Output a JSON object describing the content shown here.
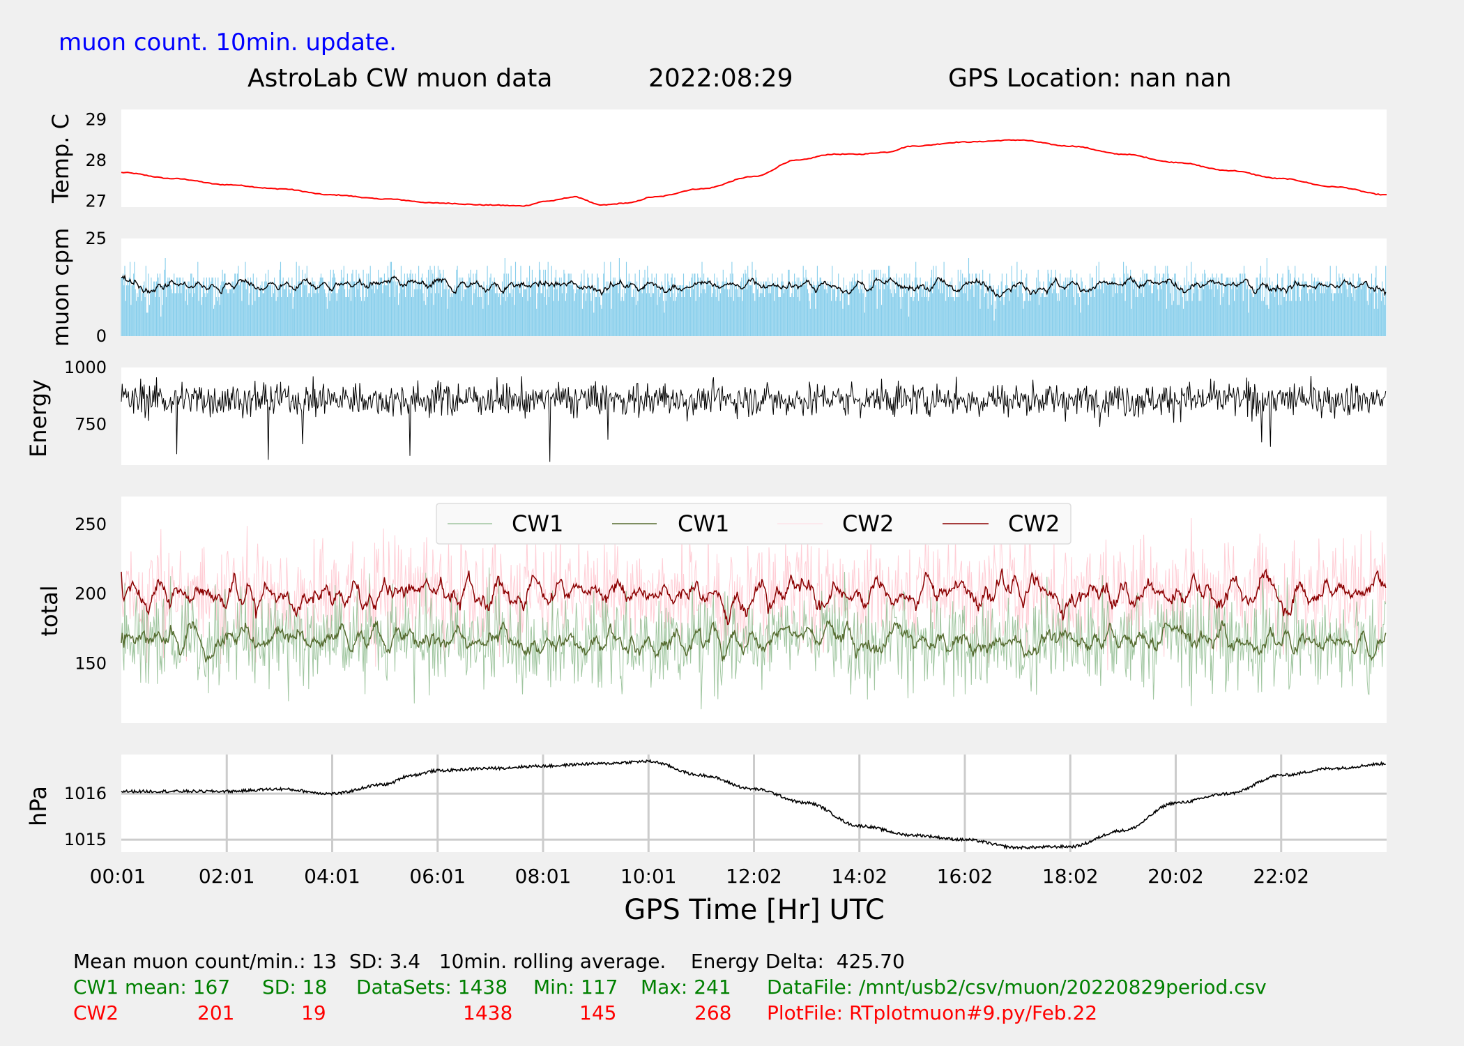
{
  "header": {
    "update_note": "muon count.  10min. update.",
    "title": "AstroLab CW muon data",
    "date": "2022:08:29",
    "location": "GPS Location: nan   nan"
  },
  "xaxis": {
    "label": "GPS Time  [Hr] UTC",
    "ticks": [
      "00:01",
      "02:01",
      "04:01",
      "06:01",
      "08:01",
      "10:01",
      "12:02",
      "14:02",
      "16:02",
      "18:02",
      "20:02",
      "22:02"
    ],
    "range_hours": [
      0,
      24
    ]
  },
  "colors": {
    "temp": "#ff0000",
    "muon_bars": "#87ceeb",
    "black": "#000000",
    "cw1_raw": "#8fbc8f",
    "cw1_avg": "#556b2f",
    "cw2_raw": "#ffc0cb",
    "cw2_avg": "#8b0000",
    "blue_text": "#0000ff",
    "green_text": "#008000",
    "red_text": "#ff0000"
  },
  "chart_data": [
    {
      "type": "line",
      "ylabel": "Temp. C",
      "yticks": [
        27,
        28,
        29
      ],
      "ylim": [
        26.85,
        29.25
      ],
      "series": [
        {
          "x": [
            0,
            1,
            2,
            3,
            4,
            5,
            6,
            7,
            7.6,
            8.1,
            8.6,
            9.1,
            9.6,
            10.1,
            11,
            12,
            12.8,
            13.5,
            14,
            14.5,
            15,
            16,
            17,
            18,
            19,
            20,
            21,
            22,
            23,
            24
          ],
          "y": [
            27.7,
            27.55,
            27.4,
            27.3,
            27.15,
            27.05,
            26.95,
            26.9,
            26.88,
            27.0,
            27.1,
            26.9,
            26.95,
            27.1,
            27.3,
            27.6,
            28.0,
            28.15,
            28.15,
            28.2,
            28.35,
            28.45,
            28.5,
            28.35,
            28.15,
            27.95,
            27.75,
            27.55,
            27.35,
            27.15
          ]
        }
      ]
    },
    {
      "type": "bar",
      "ylabel": "muon cpm",
      "yticks": [
        0,
        25
      ],
      "ylim": [
        0,
        25
      ],
      "mean": 13,
      "sd": 3.4,
      "rolling_average_min": 10,
      "overlay": "10min. rolling average"
    },
    {
      "type": "line",
      "ylabel": "Energy",
      "yticks": [
        750,
        1000
      ],
      "ylim": [
        570,
        1000
      ],
      "mean": 860,
      "energy_delta": 425.7
    },
    {
      "type": "line",
      "ylabel": "total",
      "yticks": [
        150,
        200,
        250
      ],
      "ylim": [
        107,
        270
      ],
      "legend": [
        "CW1",
        "CW1",
        "CW2",
        "CW2"
      ],
      "legend_placement": "top-center",
      "series": [
        {
          "name": "CW1",
          "mean": 167,
          "sd": 18,
          "min": 117,
          "max": 241,
          "datasets": 1438
        },
        {
          "name": "CW2",
          "mean": 201,
          "sd": 19,
          "min": 145,
          "max": 268,
          "datasets": 1438
        }
      ]
    },
    {
      "type": "line",
      "ylabel": "hPa",
      "yticks": [
        1015,
        1016
      ],
      "ylim": [
        1014.73,
        1016.85
      ],
      "grid": true,
      "series": [
        {
          "x": [
            0,
            1,
            2,
            3,
            4,
            5,
            5.5,
            6,
            7,
            8,
            9,
            10,
            11,
            12,
            13,
            14,
            15,
            16,
            17,
            18,
            19,
            20,
            21,
            22,
            23,
            24
          ],
          "y": [
            1016.05,
            1016.05,
            1016.05,
            1016.1,
            1016.0,
            1016.2,
            1016.4,
            1016.5,
            1016.55,
            1016.6,
            1016.65,
            1016.7,
            1016.4,
            1016.1,
            1015.8,
            1015.3,
            1015.1,
            1015.0,
            1014.83,
            1014.85,
            1015.2,
            1015.8,
            1016.0,
            1016.4,
            1016.55,
            1016.65
          ]
        }
      ]
    }
  ],
  "stats": {
    "line1": "Mean muon count/min.: 13  SD: 3.4   10min. rolling average.    Energy Delta:  425.70",
    "cw1_label": "CW1 mean: 167",
    "cw1_sd": "SD: 18",
    "cw1_datasets": "DataSets: 1438",
    "cw1_min": "Min: 117",
    "cw1_max": "Max: 241",
    "datafile": "DataFile: /mnt/usb2/csv/muon/20220829period.csv",
    "cw2_label": "CW2",
    "cw2_mean": "201",
    "cw2_sd": "19",
    "cw2_datasets": "1438",
    "cw2_min": "145",
    "cw2_max": "268",
    "plotfile": "PlotFile: RTplotmuon#9.py/Feb.22"
  }
}
